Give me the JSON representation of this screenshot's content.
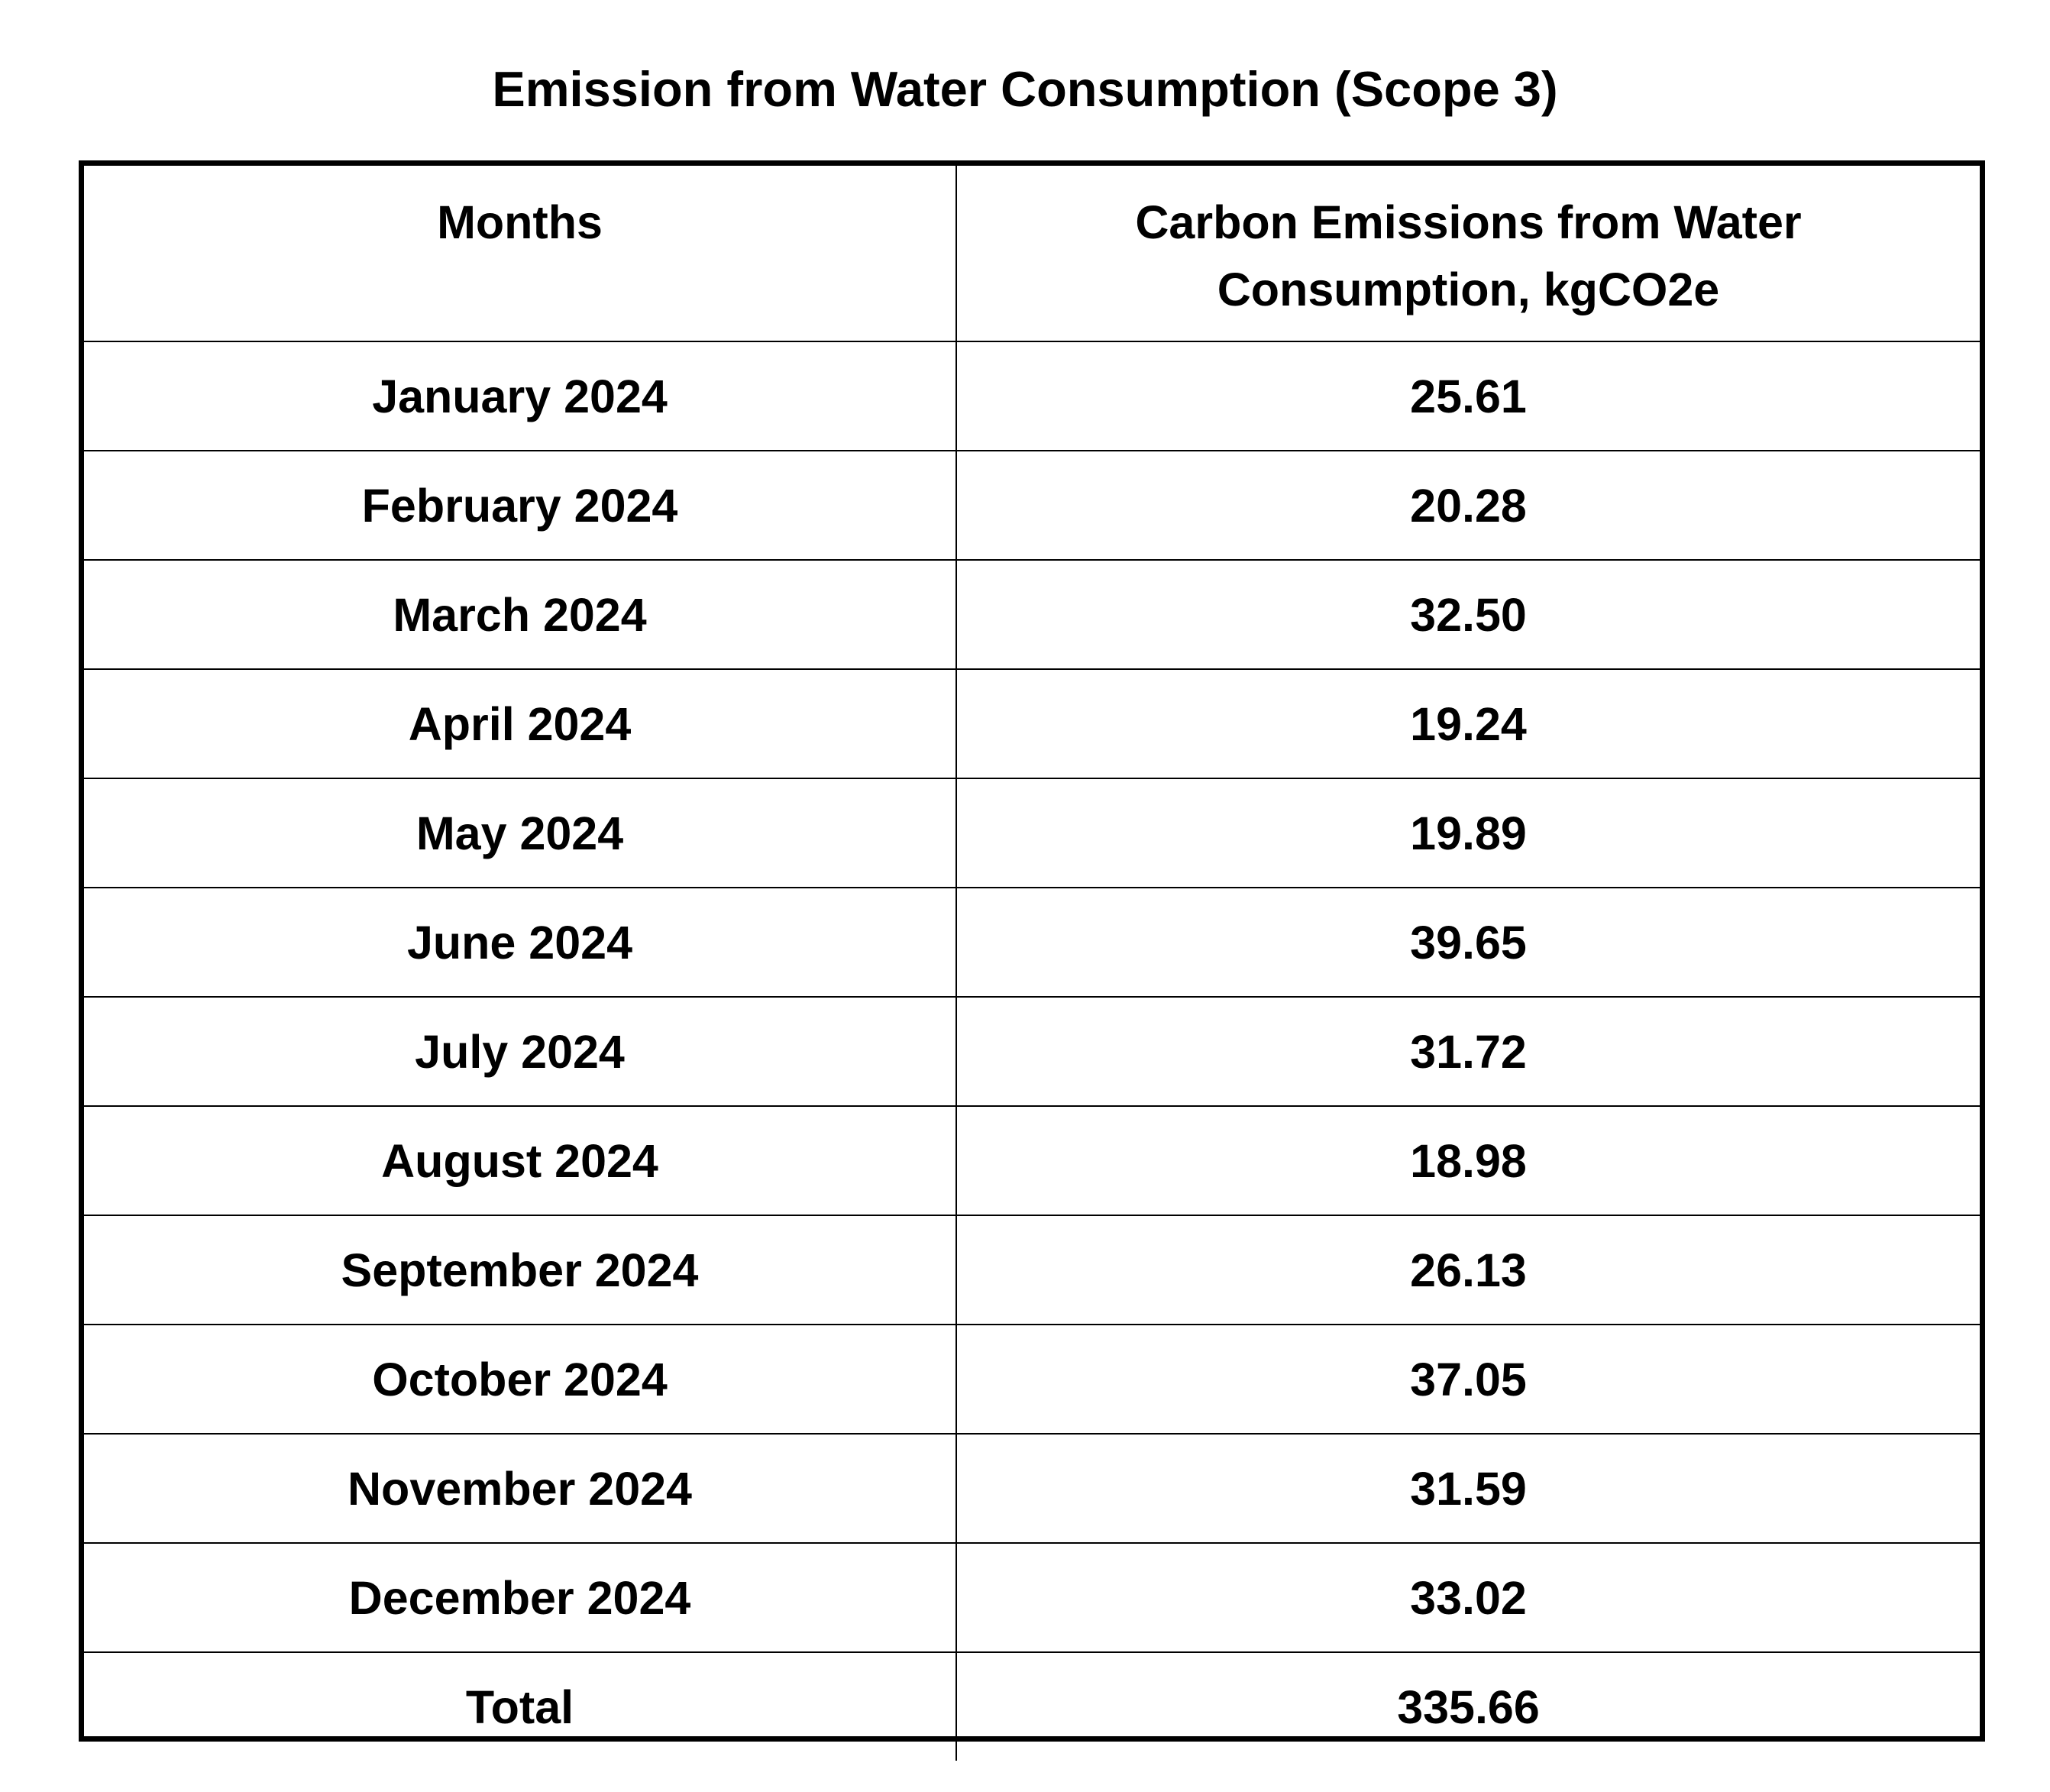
{
  "title": "Emission from Water Consumption (Scope 3)",
  "table": {
    "headers": {
      "months": "Months",
      "emissions_line1": "Carbon Emissions from Water",
      "emissions_line2": "Consumption, kgCO2e"
    },
    "rows": [
      {
        "month": "January 2024",
        "value": "25.61"
      },
      {
        "month": "February 2024",
        "value": "20.28"
      },
      {
        "month": "March 2024",
        "value": "32.50"
      },
      {
        "month": "April 2024",
        "value": "19.24"
      },
      {
        "month": "May 2024",
        "value": "19.89"
      },
      {
        "month": "June 2024",
        "value": "39.65"
      },
      {
        "month": "July 2024",
        "value": "31.72"
      },
      {
        "month": "August 2024",
        "value": "18.98"
      },
      {
        "month": "September 2024",
        "value": "26.13"
      },
      {
        "month": "October 2024",
        "value": "37.05"
      },
      {
        "month": "November 2024",
        "value": "31.59"
      },
      {
        "month": "December 2024",
        "value": "33.02"
      }
    ],
    "total": {
      "label": "Total",
      "value": "335.66"
    }
  }
}
